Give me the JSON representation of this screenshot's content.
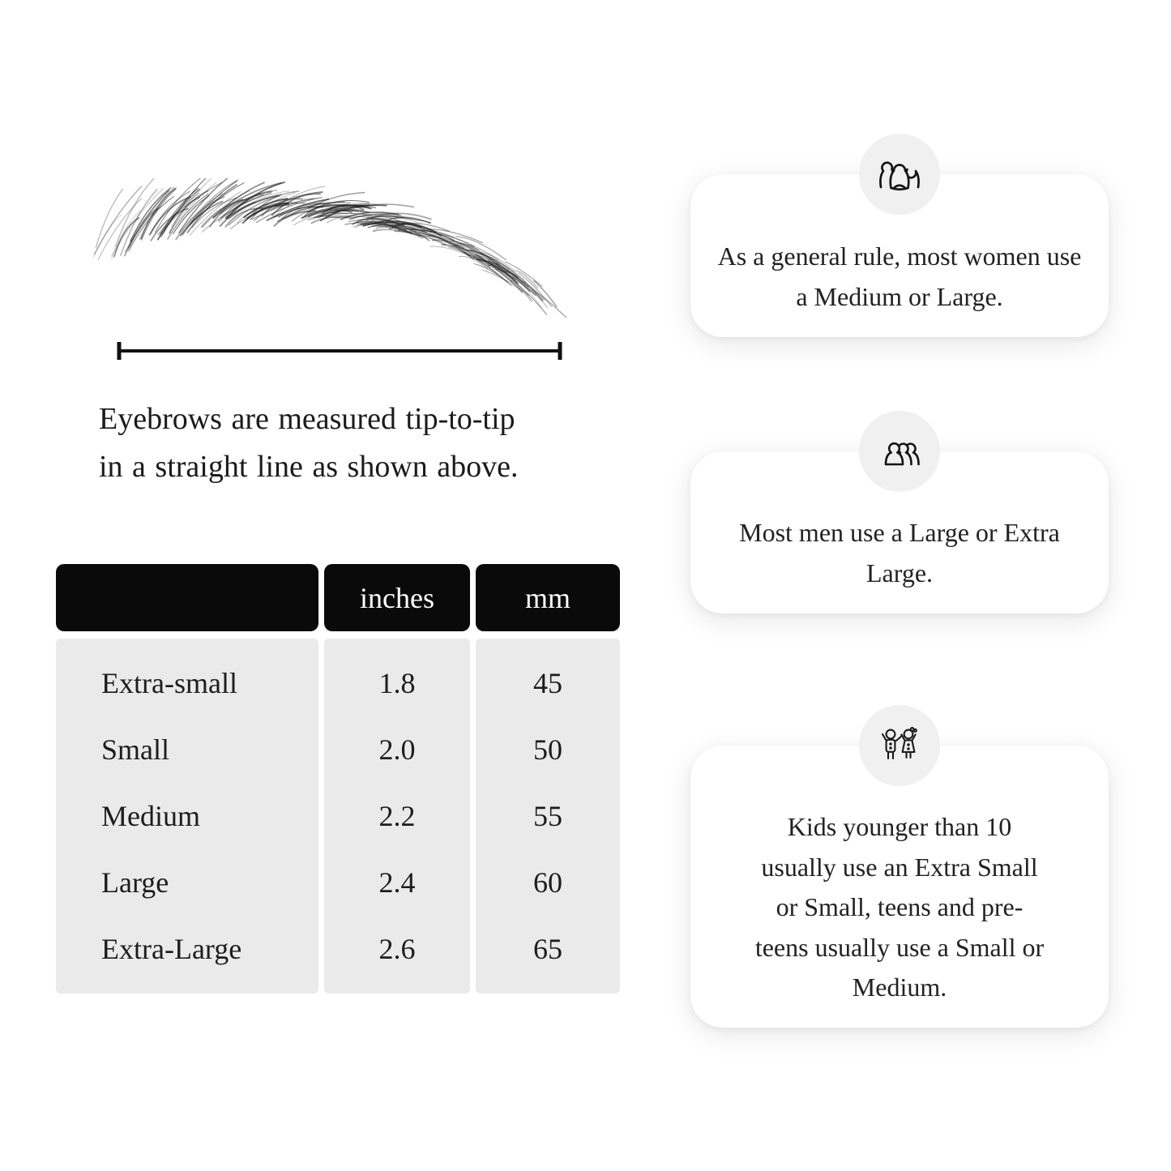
{
  "page": {
    "bg_color": "#ffffff",
    "text_color": "#1e1e1e"
  },
  "measurement_diagram": {
    "eyebrow_illustration": "eyebrow-sketch",
    "measure_line": "tip-to-tip-measurement-line",
    "caption_line1": "Eyebrows are measured tip-to-tip",
    "caption_line2": "in a straight line as shown above."
  },
  "size_table": {
    "header_bg": "#0a0a0a",
    "header_text_color": "#ffffff",
    "body_bg": "#eaeaea",
    "columns": [
      "",
      "inches",
      "mm"
    ],
    "rows": [
      {
        "label": "Extra-small",
        "inches": "1.8",
        "mm": "45"
      },
      {
        "label": "Small",
        "inches": "2.0",
        "mm": "50"
      },
      {
        "label": "Medium",
        "inches": "2.2",
        "mm": "55"
      },
      {
        "label": "Large",
        "inches": "2.4",
        "mm": "60"
      },
      {
        "label": "Extra-Large",
        "inches": "2.6",
        "mm": "65"
      }
    ]
  },
  "info_cards": [
    {
      "icon": "women-group-icon",
      "text": "As a general rule, most women use a Medium or Large."
    },
    {
      "icon": "men-group-icon",
      "text": "Most men use a Large or Extra Large."
    },
    {
      "icon": "kids-icon",
      "text": "Kids younger than 10 usually use an Extra Small or Small, teens and pre-teens usually use a Small or Medium."
    }
  ],
  "icon_circle_bg": "#f0f0f0"
}
